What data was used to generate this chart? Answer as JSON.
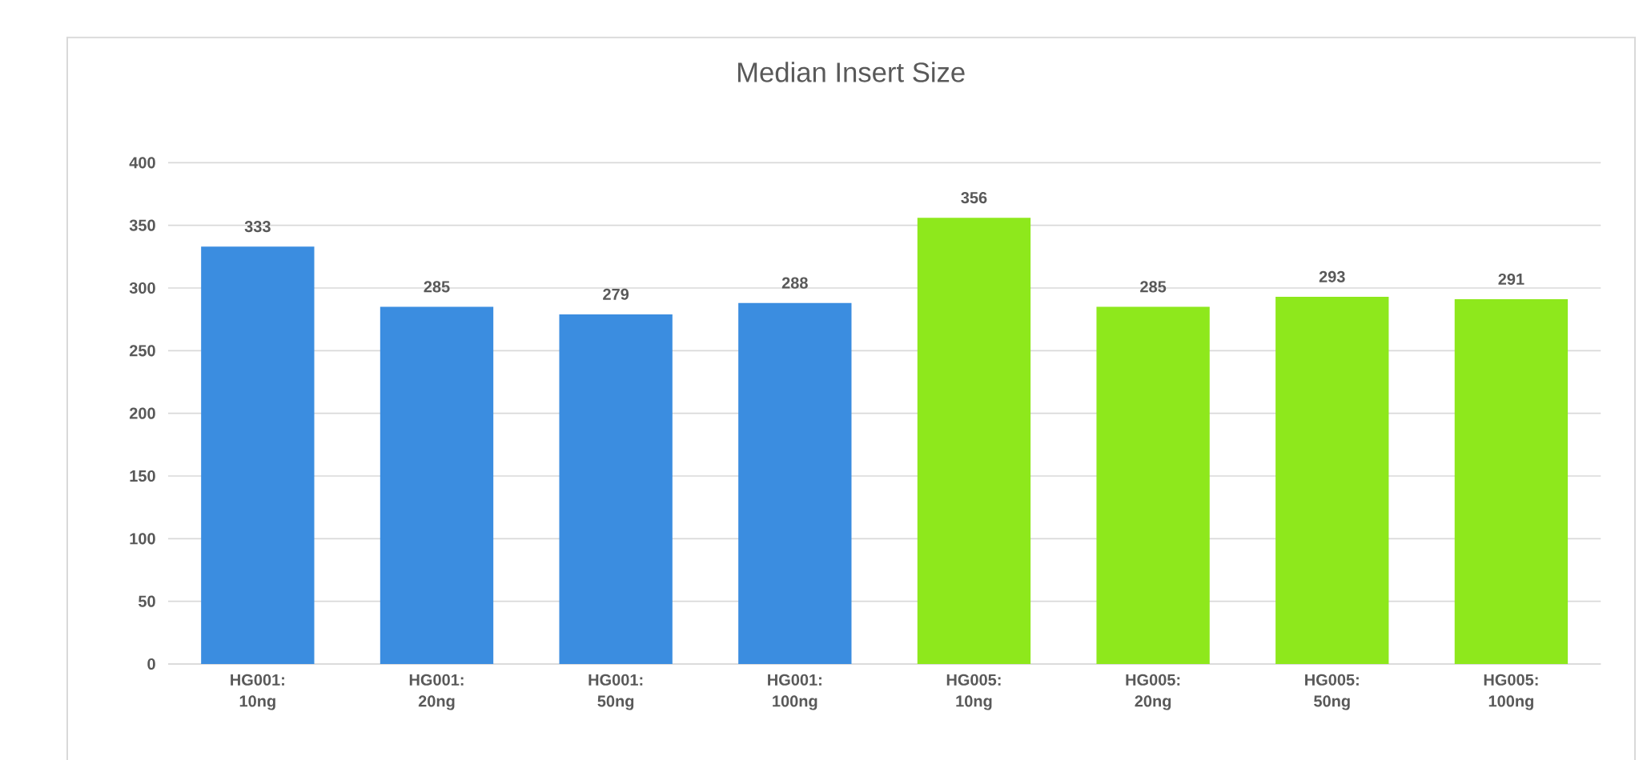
{
  "chart_data": {
    "type": "bar",
    "title": "Median Insert Size",
    "categories": [
      "HG001: 10ng",
      "HG001: 20ng",
      "HG001: 50ng",
      "HG001: 100ng",
      "HG005: 10ng",
      "HG005: 20ng",
      "HG005: 50ng",
      "HG005: 100ng"
    ],
    "values": [
      333,
      285,
      279,
      288,
      356,
      285,
      293,
      291
    ],
    "colors": [
      "#3b8de0",
      "#3b8de0",
      "#3b8de0",
      "#3b8de0",
      "#8ee81c",
      "#8ee81c",
      "#8ee81c",
      "#8ee81c"
    ],
    "ylim": [
      0,
      400
    ],
    "yticks": [
      0,
      50,
      100,
      150,
      200,
      250,
      300,
      350,
      400
    ],
    "grid": "y",
    "data_labels": true
  }
}
